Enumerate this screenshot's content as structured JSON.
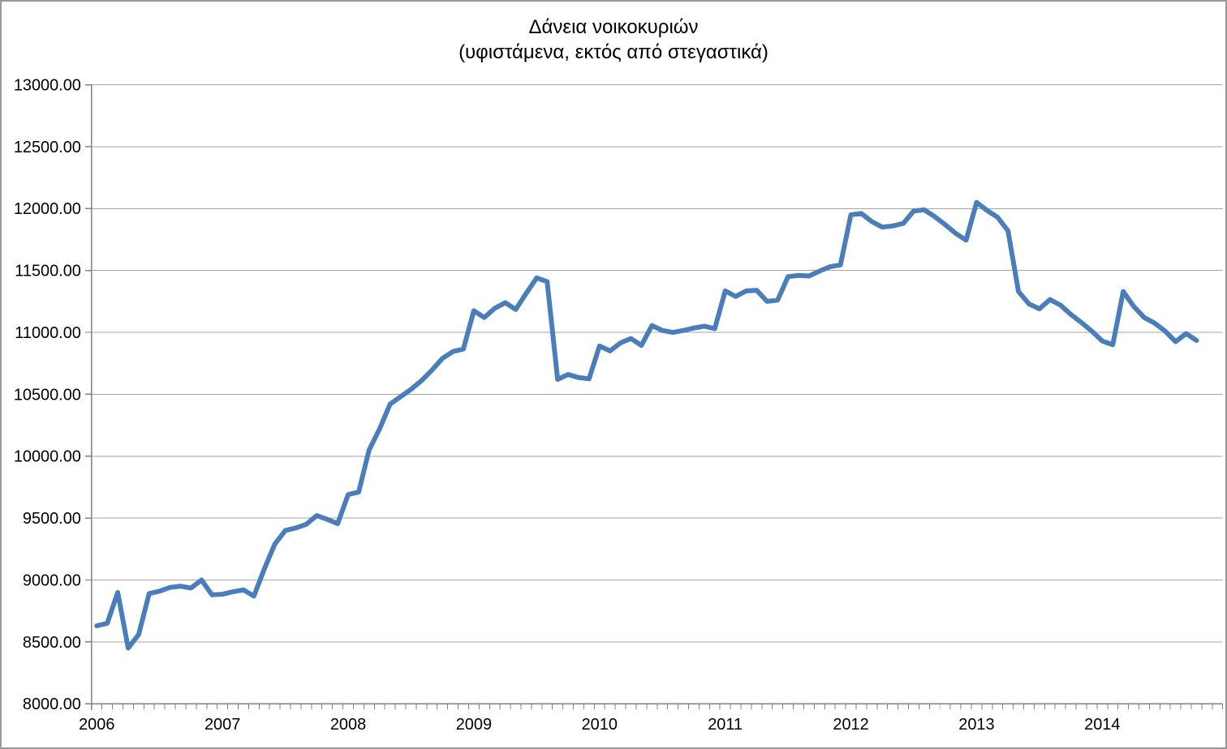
{
  "chart_data": {
    "type": "line",
    "title": "Δάνεια νοικοκυριών",
    "subtitle": "(υφιστάμενα, εκτός από στεγαστικά)",
    "legend_position": "none",
    "grid": true,
    "ylim": [
      8000,
      13000
    ],
    "ytick_step": 500,
    "ytick_labels": [
      "8000.00",
      "8500.00",
      "9000.00",
      "9500.00",
      "10000.00",
      "10500.00",
      "11000.00",
      "11500.00",
      "12000.00",
      "12500.00",
      "13000.00"
    ],
    "x_year_labels": [
      "2006",
      "2007",
      "2008",
      "2009",
      "2010",
      "2011",
      "2012",
      "2013",
      "2014"
    ],
    "months_per_year": 12,
    "x_total_slots": 108,
    "series": [
      {
        "name": "Δάνεια νοικοκυριών (υφιστάμενα, εκτός από στεγαστικά)",
        "start_year": "2006",
        "monthly_values": [
          8630,
          8650,
          8900,
          8450,
          8560,
          8890,
          8910,
          8940,
          8950,
          8935,
          9000,
          8880,
          8885,
          8905,
          8920,
          8870,
          9090,
          9290,
          9400,
          9420,
          9450,
          9520,
          9490,
          9455,
          9690,
          9710,
          10050,
          10220,
          10420,
          10480,
          10540,
          10610,
          10695,
          10790,
          10845,
          10865,
          11175,
          11120,
          11195,
          11240,
          11185,
          11315,
          11440,
          11410,
          10620,
          10660,
          10635,
          10625,
          10890,
          10850,
          10915,
          10950,
          10895,
          11055,
          11015,
          11000,
          11015,
          11035,
          11050,
          11030,
          11335,
          11290,
          11335,
          11340,
          11250,
          11260,
          11450,
          11460,
          11455,
          11495,
          11530,
          11545,
          11950,
          11960,
          11895,
          11850,
          11860,
          11880,
          11980,
          11990,
          11935,
          11870,
          11800,
          11745,
          12050,
          11985,
          11930,
          11820,
          11330,
          11230,
          11190,
          11265,
          11220,
          11145,
          11080,
          11010,
          10930,
          10900,
          11330,
          11210,
          11120,
          11075,
          11010,
          10925,
          10990,
          10935
        ]
      }
    ],
    "colors": {
      "line": "#4A7EBB",
      "grid": "#A6A6A6",
      "axis": "#808080",
      "text": "#000000",
      "border": "#999999",
      "background": "#FFFFFF"
    }
  }
}
